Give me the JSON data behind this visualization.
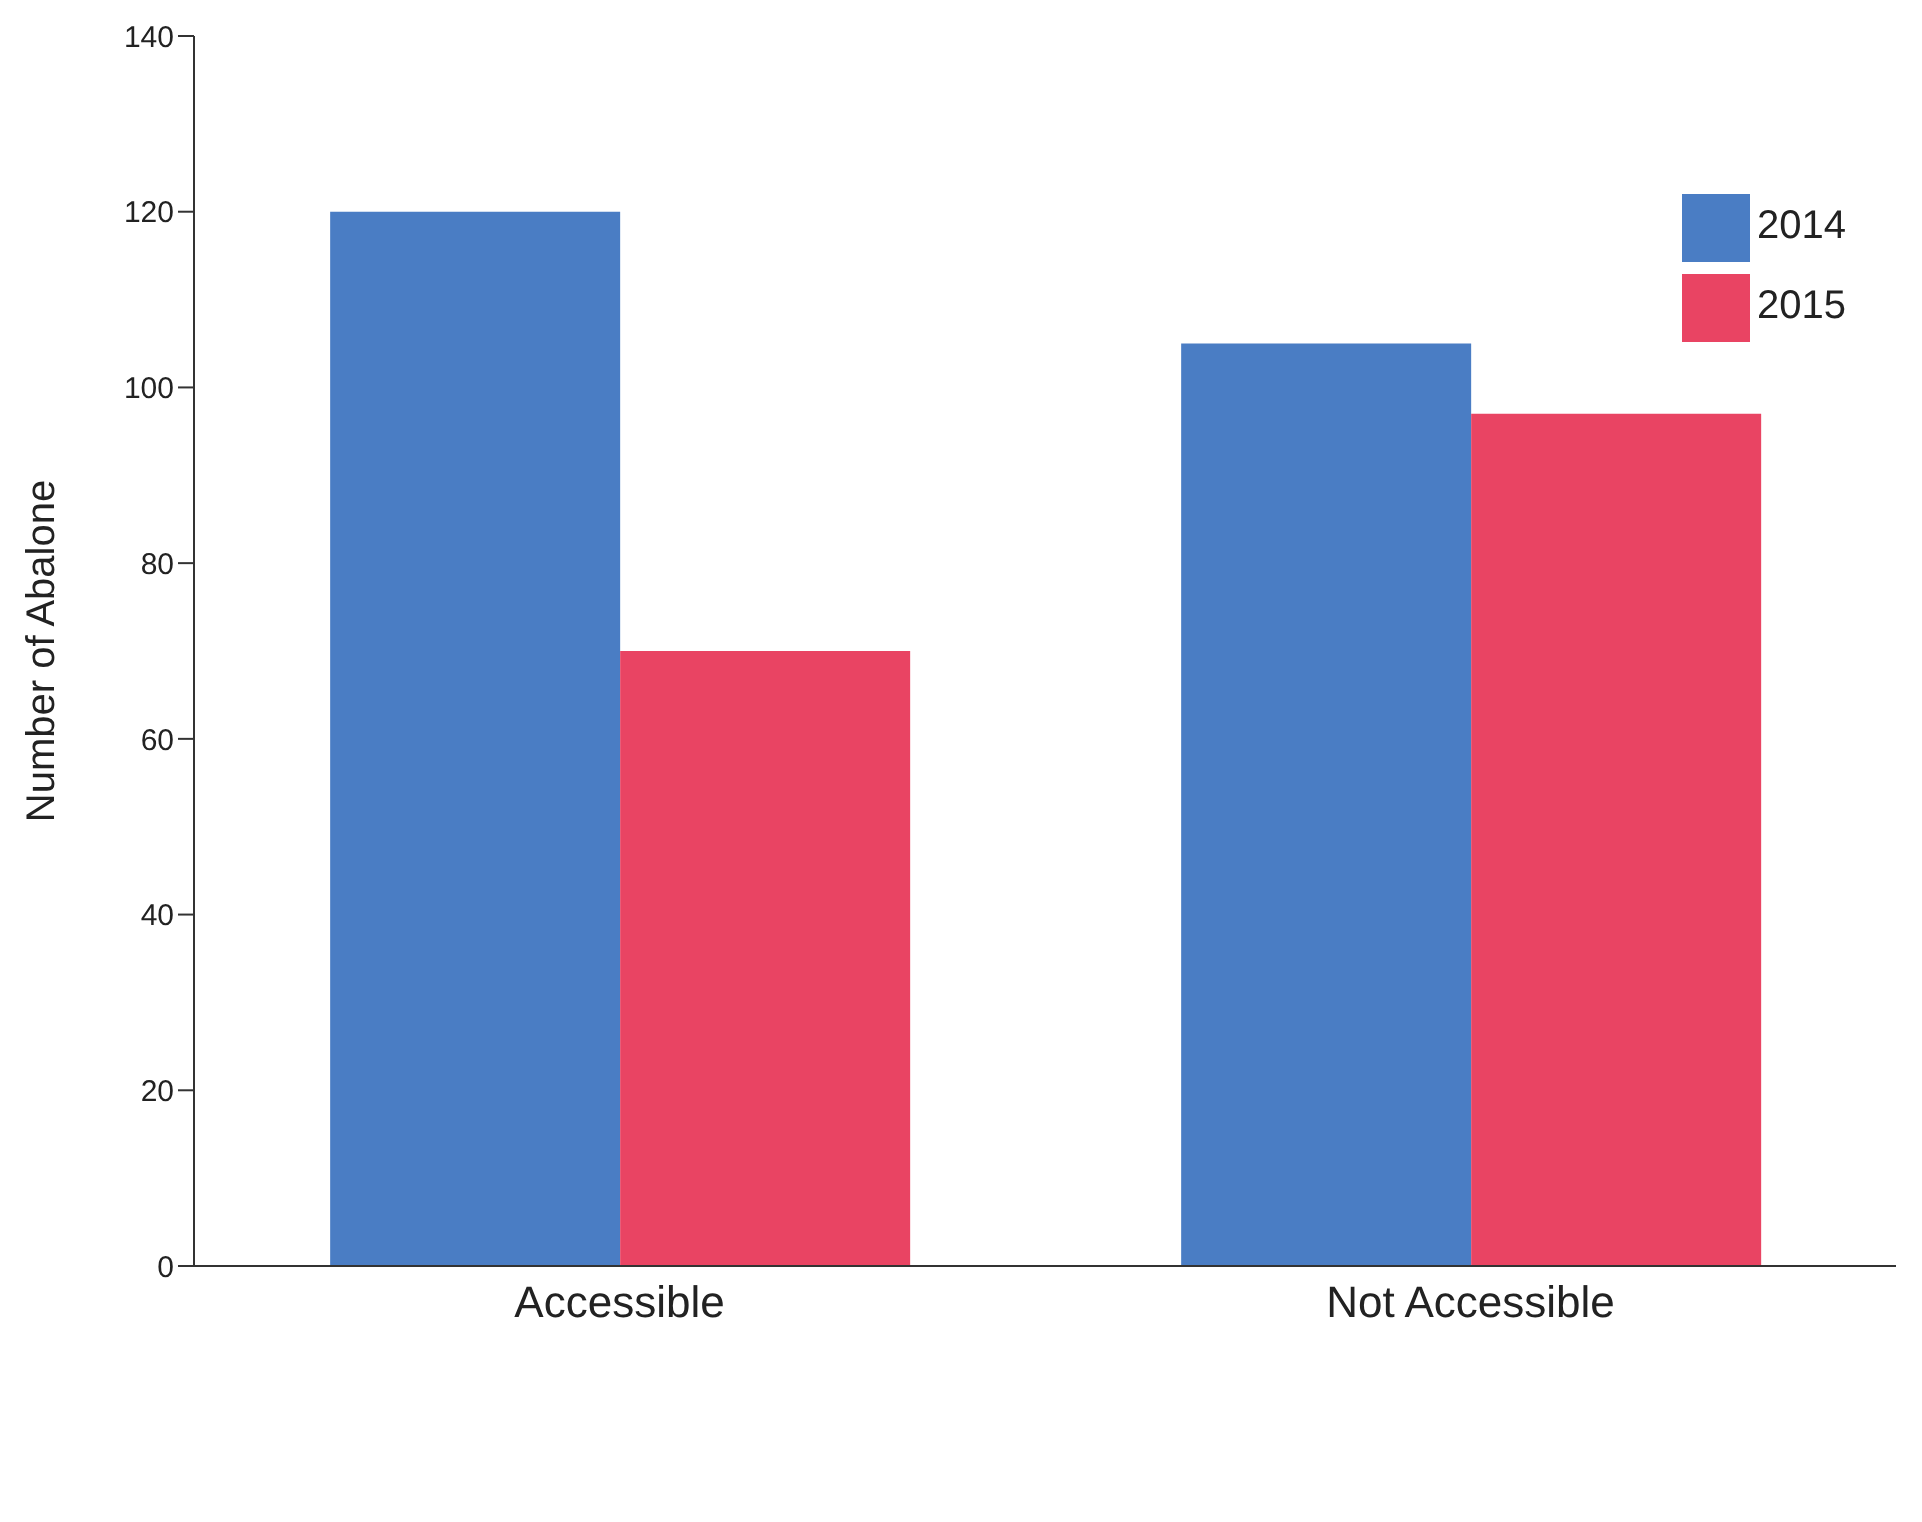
{
  "chart_data": {
    "type": "bar",
    "ylabel": "Number of Abalone",
    "categories": [
      "Accessible",
      "Not Accessible"
    ],
    "series": [
      {
        "name": "2014",
        "color": "#4a7dc4",
        "values": [
          120,
          105
        ]
      },
      {
        "name": "2015",
        "color": "#e94463",
        "values": [
          70,
          97
        ]
      }
    ],
    "ylim": [
      0,
      140
    ],
    "yticks": [
      0,
      20,
      40,
      60,
      80,
      100,
      120,
      140
    ],
    "grid": false,
    "legend": "top right"
  }
}
